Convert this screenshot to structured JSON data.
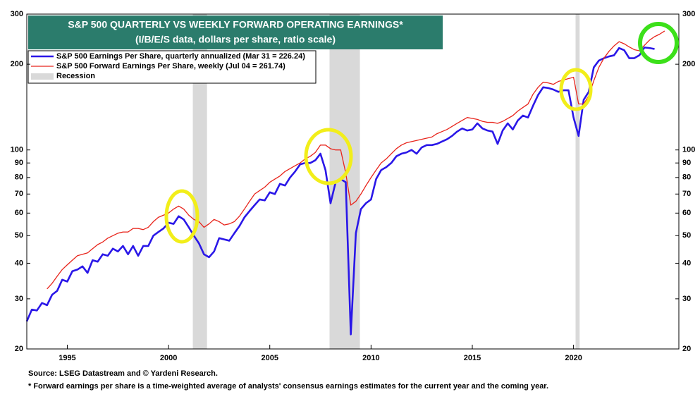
{
  "chart_data": {
    "type": "line",
    "title": "S&P 500 QUARTERLY VS WEEKLY FORWARD OPERATING EARNINGS*",
    "subtitle": "(I/B/E/S data, dollars per share, ratio scale)",
    "source": "Source: LSEG Datastream and © Yardeni Research.",
    "note": "* Forward earnings per share is a time-weighted average of analysts' consensus earnings estimates for the current year and the coming year.",
    "log_scale": true,
    "xlim": [
      1993,
      2025.2
    ],
    "xticks": [
      1995,
      2000,
      2005,
      2010,
      2015,
      2020
    ],
    "ylim": [
      20,
      300
    ],
    "yticks": [
      20,
      30,
      40,
      50,
      60,
      70,
      80,
      90,
      100,
      200,
      300
    ],
    "recessions": {
      "name": "Recession",
      "color": "#d9d9d9",
      "periods": [
        [
          2001.2,
          2001.9
        ],
        [
          2007.95,
          2009.45
        ],
        [
          2020.1,
          2020.3
        ]
      ]
    },
    "series": [
      {
        "name": "S&P 500 Earnings Per Share, quarterly annualized (Mar 31 = 226.24)",
        "color": "#2a17e8",
        "x": [
          1993,
          1993.25,
          1993.5,
          1993.75,
          1994,
          1994.25,
          1994.5,
          1994.75,
          1995,
          1995.25,
          1995.5,
          1995.75,
          1996,
          1996.25,
          1996.5,
          1996.75,
          1997,
          1997.25,
          1997.5,
          1997.75,
          1998,
          1998.25,
          1998.5,
          1998.75,
          1999,
          1999.25,
          1999.5,
          1999.75,
          2000,
          2000.25,
          2000.5,
          2000.75,
          2001,
          2001.25,
          2001.5,
          2001.75,
          2002,
          2002.25,
          2002.5,
          2002.75,
          2003,
          2003.25,
          2003.5,
          2003.75,
          2004,
          2004.25,
          2004.5,
          2004.75,
          2005,
          2005.25,
          2005.5,
          2005.75,
          2006,
          2006.25,
          2006.5,
          2006.75,
          2007,
          2007.25,
          2007.5,
          2007.75,
          2008,
          2008.25,
          2008.5,
          2008.75,
          2009,
          2009.25,
          2009.5,
          2009.75,
          2010,
          2010.25,
          2010.5,
          2010.75,
          2011,
          2011.25,
          2011.5,
          2011.75,
          2012,
          2012.25,
          2012.5,
          2012.75,
          2013,
          2013.25,
          2013.5,
          2013.75,
          2014,
          2014.25,
          2014.5,
          2014.75,
          2015,
          2015.25,
          2015.5,
          2015.75,
          2016,
          2016.25,
          2016.5,
          2016.75,
          2017,
          2017.25,
          2017.5,
          2017.75,
          2018,
          2018.25,
          2018.5,
          2018.75,
          2019,
          2019.25,
          2019.5,
          2019.75,
          2020,
          2020.25,
          2020.5,
          2020.75,
          2021,
          2021.25,
          2021.5,
          2021.75,
          2022,
          2022.25,
          2022.5,
          2022.75,
          2023,
          2023.25,
          2023.5,
          2023.75,
          2024
        ],
        "values": [
          25,
          27.5,
          27.3,
          29,
          28.5,
          31,
          32,
          35,
          34.5,
          37.5,
          38,
          39,
          37,
          41,
          40.5,
          43,
          42.5,
          45,
          44,
          46,
          43,
          46,
          42.5,
          46,
          46,
          50,
          51.5,
          53,
          55.5,
          55,
          58.5,
          57,
          53.5,
          50,
          47,
          43,
          42,
          44,
          49,
          48.5,
          48,
          51,
          54,
          58,
          61,
          64,
          67,
          66.5,
          71,
          70,
          76,
          75,
          80,
          84,
          89,
          90,
          90,
          92,
          97,
          85,
          65,
          77,
          79,
          77,
          22.5,
          51,
          62,
          65,
          67,
          79,
          85,
          87,
          90,
          95,
          97,
          98,
          100,
          97,
          102,
          104,
          104,
          105,
          107,
          109,
          112,
          116,
          119,
          117,
          118,
          124,
          119,
          117,
          116,
          105,
          117,
          124,
          118,
          127,
          132,
          130,
          143,
          156,
          166,
          165,
          163,
          160,
          162,
          162,
          130,
          112,
          150,
          160,
          195,
          206,
          210,
          213,
          215,
          228,
          224,
          210,
          210,
          215,
          229,
          228,
          226.24
        ]
      },
      {
        "name": "S&P 500 Forward Earnings Per Share, weekly (Jul 04 = 261.74)",
        "color": "#e8251c",
        "x": [
          1994,
          1994.25,
          1994.5,
          1994.75,
          1995,
          1995.25,
          1995.5,
          1995.75,
          1996,
          1996.25,
          1996.5,
          1996.75,
          1997,
          1997.25,
          1997.5,
          1997.75,
          1998,
          1998.25,
          1998.5,
          1998.75,
          1999,
          1999.25,
          1999.5,
          1999.75,
          2000,
          2000.25,
          2000.5,
          2000.75,
          2001,
          2001.25,
          2001.5,
          2001.75,
          2002,
          2002.25,
          2002.5,
          2002.75,
          2003,
          2003.25,
          2003.5,
          2003.75,
          2004,
          2004.25,
          2004.5,
          2004.75,
          2005,
          2005.25,
          2005.5,
          2005.75,
          2006,
          2006.25,
          2006.5,
          2006.75,
          2007,
          2007.25,
          2007.5,
          2007.75,
          2008,
          2008.25,
          2008.5,
          2008.75,
          2009,
          2009.25,
          2009.5,
          2009.75,
          2010,
          2010.25,
          2010.5,
          2010.75,
          2011,
          2011.25,
          2011.5,
          2011.75,
          2012,
          2012.25,
          2012.5,
          2012.75,
          2013,
          2013.25,
          2013.5,
          2013.75,
          2014,
          2014.25,
          2014.5,
          2014.75,
          2015,
          2015.25,
          2015.5,
          2015.75,
          2016,
          2016.25,
          2016.5,
          2016.75,
          2017,
          2017.25,
          2017.5,
          2017.75,
          2018,
          2018.25,
          2018.5,
          2018.75,
          2019,
          2019.25,
          2019.5,
          2019.75,
          2020,
          2020.25,
          2020.5,
          2020.75,
          2021,
          2021.25,
          2021.5,
          2021.75,
          2022,
          2022.25,
          2022.5,
          2022.75,
          2023,
          2023.25,
          2023.5,
          2023.75,
          2024,
          2024.25,
          2024.5
        ],
        "values": [
          32.5,
          34,
          36,
          38,
          39.5,
          41,
          42.5,
          43,
          43.5,
          45,
          46.5,
          47.5,
          49,
          50,
          51,
          51.5,
          51.5,
          53,
          53,
          52.5,
          53.5,
          56,
          58,
          59,
          60,
          62,
          63.5,
          62,
          59,
          57,
          56,
          53.5,
          55,
          57,
          56,
          54.5,
          55,
          56,
          58.5,
          62,
          66,
          70,
          72,
          74,
          77,
          79,
          81,
          84,
          86,
          88,
          90,
          93,
          95,
          98,
          104,
          104,
          101,
          100,
          100,
          83,
          64,
          66,
          70,
          75,
          80,
          85,
          90,
          93,
          97,
          101,
          104,
          106,
          107,
          108,
          109,
          110,
          111,
          114,
          116,
          118,
          121,
          124,
          127,
          130,
          129,
          128,
          126,
          125,
          125,
          124,
          126,
          129,
          132,
          137,
          141,
          145,
          157,
          166,
          173,
          172,
          170,
          174,
          176,
          178,
          180,
          145,
          145,
          155,
          175,
          195,
          210,
          222,
          232,
          240,
          236,
          230,
          225,
          223,
          233,
          243,
          250,
          255,
          261.74
        ]
      }
    ]
  }
}
